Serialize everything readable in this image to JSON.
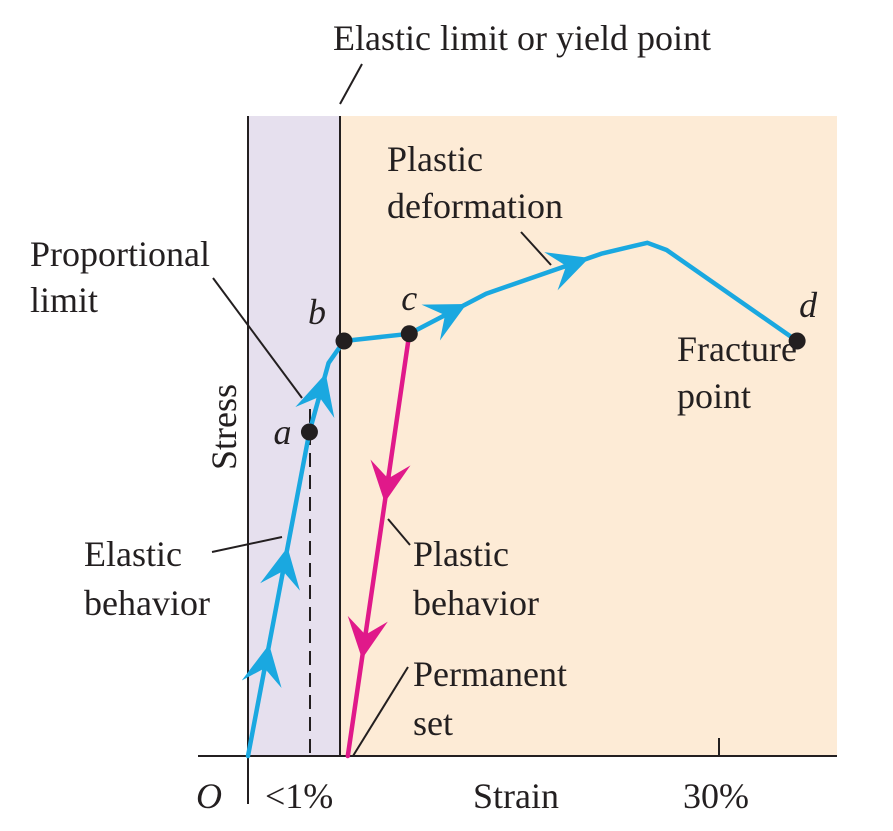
{
  "chart_data": {
    "type": "line",
    "title": "Elastic limit or yield point",
    "xlabel": "Strain",
    "ylabel": "Stress",
    "origin_label": "O",
    "x_ticks": [
      "<1%",
      "30%"
    ],
    "regions": [
      {
        "name": "elastic",
        "color": "#e6e0ee"
      },
      {
        "name": "plastic",
        "color": "#fdebd6"
      }
    ],
    "series": [
      {
        "color": "#1aa8e0",
        "points": [
          [
            0,
            0
          ],
          [
            16,
            89
          ],
          [
            21,
            108
          ],
          [
            25,
            114
          ],
          [
            42,
            116
          ],
          [
            62,
            127
          ],
          [
            92,
            138
          ],
          [
            104,
            141
          ],
          [
            109,
            139
          ],
          [
            143,
            114
          ]
        ]
      },
      {
        "color": "#e0198a",
        "points": [
          [
            42,
            116
          ],
          [
            26,
            0
          ]
        ]
      }
    ],
    "points": [
      {
        "label": "a",
        "x": 16,
        "y": 89
      },
      {
        "label": "b",
        "x": 25,
        "y": 114
      },
      {
        "label": "c",
        "x": 42,
        "y": 116
      },
      {
        "label": "d",
        "x": 143,
        "y": 114
      }
    ],
    "annotations": {
      "proportional_limit": [
        "Proportional",
        "limit"
      ],
      "plastic_deformation": [
        "Plastic",
        "deformation"
      ],
      "fracture_point": [
        "Fracture",
        "point"
      ],
      "elastic_behavior": [
        "Elastic",
        "behavior"
      ],
      "plastic_behavior": [
        "Plastic",
        "behavior"
      ],
      "permanent_set": [
        "Permanent",
        "set"
      ]
    }
  }
}
